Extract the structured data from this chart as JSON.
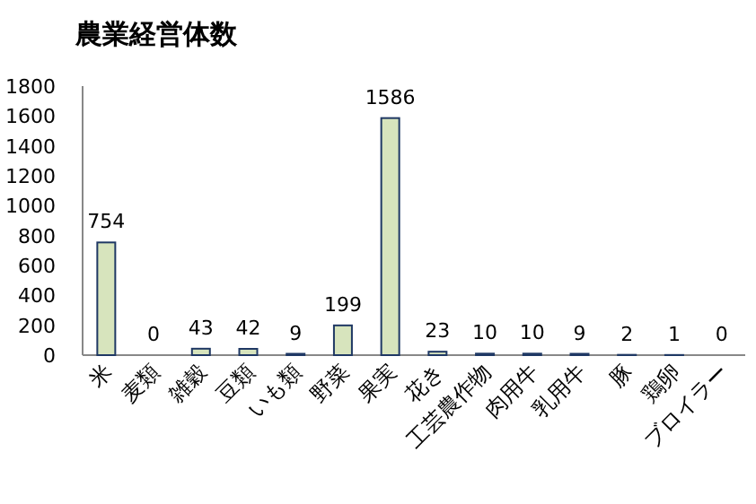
{
  "chart_data": {
    "type": "bar",
    "title": "農業経営体数",
    "categories": [
      "米",
      "麦類",
      "雑穀",
      "豆類",
      "いも類",
      "野菜",
      "果実",
      "花き",
      "工芸農作物",
      "肉用牛",
      "乳用牛",
      "豚",
      "鶏卵",
      "ブロイラー"
    ],
    "values": [
      754,
      0,
      43,
      42,
      9,
      199,
      1586,
      23,
      10,
      10,
      9,
      2,
      1,
      0
    ],
    "color": "#d7e4bd",
    "ylim": [
      0,
      1800
    ],
    "yticks": [
      0,
      200,
      400,
      600,
      800,
      1000,
      1200,
      1400,
      1600,
      1800
    ],
    "data_labels": true
  }
}
